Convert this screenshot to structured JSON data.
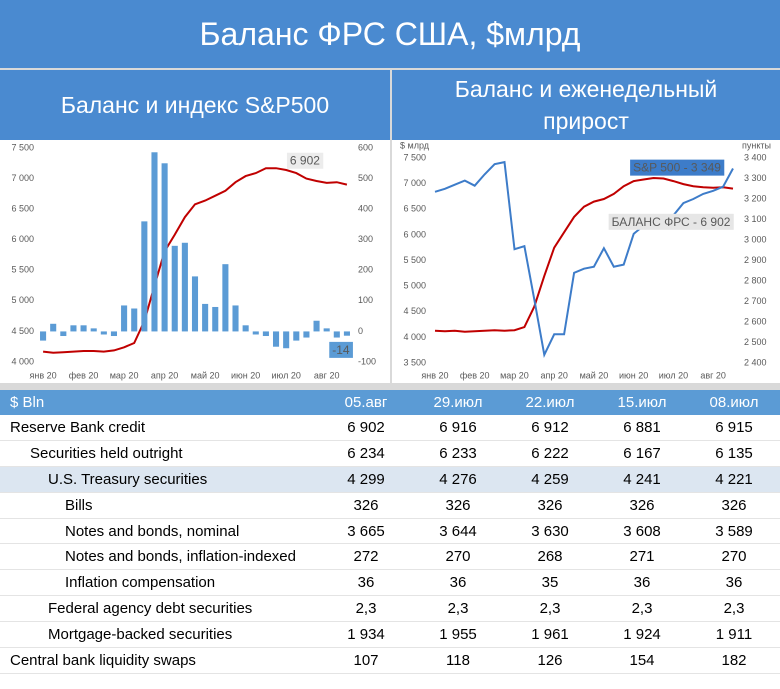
{
  "title": "Баланс ФРС США, $млрд",
  "chart_data": [
    {
      "type": "bar",
      "title": "Баланс и индекс S&P500",
      "categories": [
        "янв 20",
        null,
        null,
        null,
        "фев 20",
        null,
        null,
        null,
        "мар 20",
        null,
        null,
        null,
        "апр 20",
        null,
        null,
        null,
        "май 20",
        null,
        null,
        null,
        "июн 20",
        null,
        null,
        null,
        "июл 20",
        null,
        null,
        null,
        "авг 20",
        null,
        null
      ],
      "series": [
        {
          "type": "line",
          "axis": "y",
          "color": "#c00000",
          "annotation": "6 902",
          "values": [
            4170,
            4150,
            4160,
            4170,
            4180,
            4180,
            4170,
            4190,
            4240,
            4310,
            4670,
            5250,
            5810,
            6080,
            6370,
            6580,
            6640,
            6720,
            6800,
            6940,
            7040,
            7090,
            7170,
            7170,
            7140,
            7090,
            7000,
            6960,
            6930,
            6940,
            6902
          ]
        },
        {
          "type": "bar",
          "axis": "y2",
          "color": "#5b9bd5",
          "annotation": "-14",
          "values": [
            -30,
            25,
            -15,
            20,
            20,
            10,
            -10,
            -15,
            85,
            75,
            360,
            586,
            550,
            280,
            290,
            180,
            90,
            80,
            220,
            85,
            20,
            -10,
            -15,
            -50,
            -55,
            -30,
            -20,
            35,
            10,
            -20,
            -14
          ]
        }
      ],
      "ylim": [
        4000,
        7500
      ],
      "yticks": [
        {
          "value": 4000,
          "label": "4 000"
        },
        {
          "value": 4500,
          "label": "4 500"
        },
        {
          "value": 5000,
          "label": "5 000"
        },
        {
          "value": 5500,
          "label": "5 500"
        },
        {
          "value": 6000,
          "label": "6 000"
        },
        {
          "value": 6500,
          "label": "6 500"
        },
        {
          "value": 7000,
          "label": "7 000"
        },
        {
          "value": 7500,
          "label": "7 500"
        }
      ],
      "y2lim": [
        -100,
        600
      ],
      "y2ticks": [
        -100,
        0,
        100,
        200,
        300,
        400,
        500,
        600
      ],
      "grid": false
    },
    {
      "type": "line",
      "title": "Баланс и еженедельный прирост",
      "ylabel": "$ млрд",
      "y2label": "пункты",
      "categories": [
        "янв 20",
        null,
        null,
        null,
        "фев 20",
        null,
        null,
        null,
        "мар 20",
        null,
        null,
        null,
        "апр 20",
        null,
        null,
        null,
        "май 20",
        null,
        null,
        null,
        "июн 20",
        null,
        null,
        null,
        "июл 20",
        null,
        null,
        null,
        "авг 20",
        null,
        null
      ],
      "series": [
        {
          "type": "line",
          "axis": "y",
          "color": "#c00000",
          "annotation": "БАЛАНС ФРС - 6 902",
          "values": [
            4130,
            4120,
            4130,
            4110,
            4120,
            4130,
            4140,
            4130,
            4140,
            4200,
            4600,
            5200,
            5750,
            6050,
            6350,
            6550,
            6650,
            6700,
            6800,
            6950,
            7050,
            7080,
            7110,
            7100,
            7050,
            6990,
            6950,
            6930,
            6920,
            6930,
            6902
          ]
        },
        {
          "type": "line",
          "axis": "y2",
          "color": "#3d7cc9",
          "annotation": "S&P 500 - 3 349",
          "values": [
            3235,
            3250,
            3270,
            3290,
            3265,
            3320,
            3370,
            3380,
            2955,
            2970,
            2710,
            2440,
            2540,
            2540,
            2840,
            2860,
            2870,
            2960,
            2870,
            2880,
            3030,
            3070,
            3120,
            3060,
            3120,
            3180,
            3200,
            3225,
            3240,
            3260,
            3349
          ]
        }
      ],
      "ylim": [
        3500,
        7500
      ],
      "yticks": [
        {
          "value": 3500,
          "label": "3 500"
        },
        {
          "value": 4000,
          "label": "4 000"
        },
        {
          "value": 4500,
          "label": "4 500"
        },
        {
          "value": 5000,
          "label": "5 000"
        },
        {
          "value": 5500,
          "label": "5 500"
        },
        {
          "value": 6000,
          "label": "6 000"
        },
        {
          "value": 6500,
          "label": "6 500"
        },
        {
          "value": 7000,
          "label": "7 000"
        },
        {
          "value": 7500,
          "label": "7 500"
        }
      ],
      "y2lim": [
        2400,
        3400
      ],
      "y2ticks": [
        {
          "value": 2400,
          "label": "2 400"
        },
        {
          "value": 2500,
          "label": "2 500"
        },
        {
          "value": 2600,
          "label": "2 600"
        },
        {
          "value": 2700,
          "label": "2 700"
        },
        {
          "value": 2800,
          "label": "2 800"
        },
        {
          "value": 2900,
          "label": "2 900"
        },
        {
          "value": 3000,
          "label": "3 000"
        },
        {
          "value": 3100,
          "label": "3 100"
        },
        {
          "value": 3200,
          "label": "3 200"
        },
        {
          "value": 3300,
          "label": "3 300"
        },
        {
          "value": 3400,
          "label": "3 400"
        }
      ],
      "grid": false
    }
  ],
  "table": {
    "header": [
      "$ Bln",
      "05.авг",
      "29.июл",
      "22.июл",
      "15.июл",
      "08.июл"
    ],
    "rows": [
      [
        "Reserve Bank credit",
        "6 902",
        "6 916",
        "6 912",
        "6 881",
        "6 915"
      ],
      [
        "Securities held outright",
        "6 234",
        "6 233",
        "6 222",
        "6 167",
        "6 135"
      ],
      [
        "U.S. Treasury securities",
        "4 299",
        "4 276",
        "4 259",
        "4 241",
        "4 221"
      ],
      [
        "Bills",
        "326",
        "326",
        "326",
        "326",
        "326"
      ],
      [
        "Notes and bonds, nominal",
        "3 665",
        "3 644",
        "3 630",
        "3 608",
        "3 589"
      ],
      [
        "Notes and bonds, inflation-indexed",
        "272",
        "270",
        "268",
        "271",
        "270"
      ],
      [
        "Inflation compensation",
        "36",
        "36",
        "35",
        "36",
        "36"
      ],
      [
        "Federal agency debt securities",
        "2,3",
        "2,3",
        "2,3",
        "2,3",
        "2,3"
      ],
      [
        "Mortgage-backed securities",
        "1 934",
        "1 955",
        "1 961",
        "1 924",
        "1 911"
      ],
      [
        "Central bank liquidity swaps",
        "107",
        "118",
        "126",
        "154",
        "182"
      ]
    ]
  }
}
